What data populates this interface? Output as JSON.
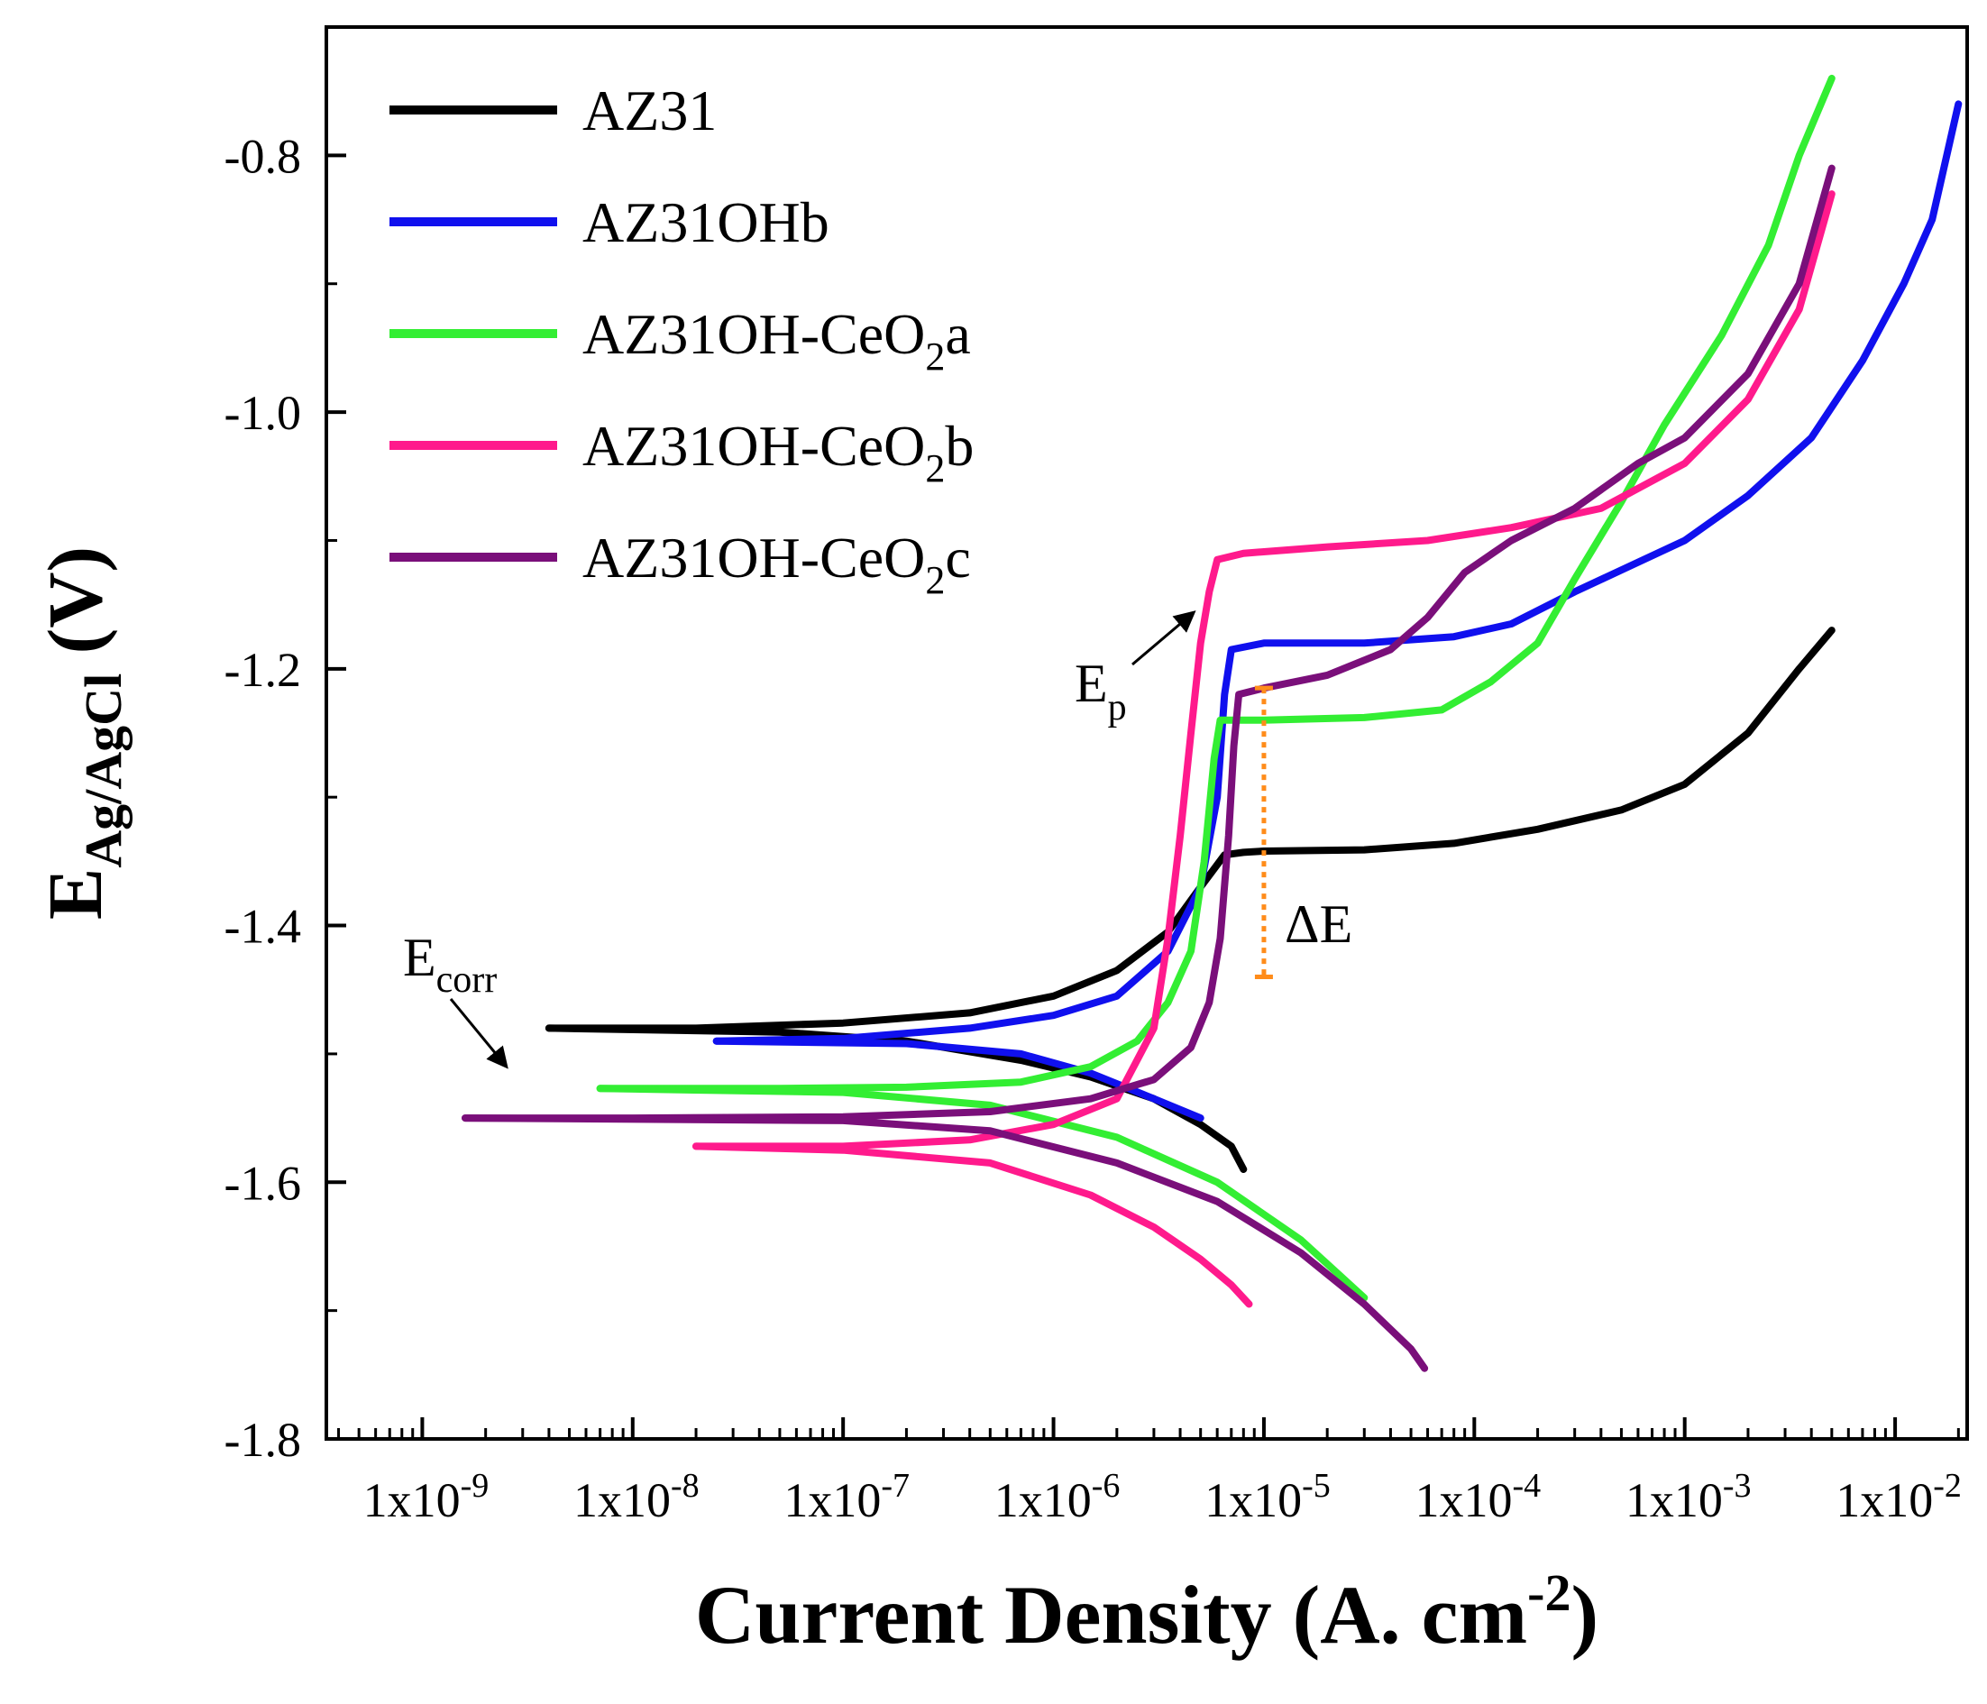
{
  "chart_data": {
    "type": "line",
    "xscale": "log",
    "xlabel": "Current Density (A. cm",
    "xlabel_sup": "-2",
    "xlabel_end": ")",
    "ylabel_main": "E",
    "ylabel_sub": "Ag/AgCl",
    "ylabel_end": " (V)",
    "xlim": [
      3.5e-10,
      0.022
    ],
    "ylim": [
      -1.8,
      -0.7
    ],
    "ytick_values": [
      -0.8,
      -1.0,
      -1.2,
      -1.4,
      -1.6,
      -1.8
    ],
    "ytick_labels": [
      "-0.8",
      "-1.0",
      "-1.2",
      "-1.4",
      "-1.6",
      "-1.8"
    ],
    "xtick_exponents": [
      -9,
      -8,
      -7,
      -6,
      -5,
      -4,
      -3,
      -2
    ],
    "xtick_base": "1x10",
    "series": [
      {
        "name": "AZ31",
        "legend_main": "AZ31",
        "legend_sub": "",
        "legend_end": "",
        "color": "#000000",
        "points": [
          [
            4e-09,
            -1.48
          ],
          [
            2e-08,
            -1.48
          ],
          [
            1e-07,
            -1.476
          ],
          [
            4e-07,
            -1.468
          ],
          [
            1e-06,
            -1.455
          ],
          [
            2e-06,
            -1.435
          ],
          [
            3.5e-06,
            -1.405
          ],
          [
            5e-06,
            -1.37
          ],
          [
            6.5e-06,
            -1.345
          ],
          [
            8e-06,
            -1.343
          ],
          [
            1e-05,
            -1.342
          ],
          [
            3e-05,
            -1.341
          ],
          [
            8e-05,
            -1.336
          ],
          [
            0.0002,
            -1.325
          ],
          [
            0.0005,
            -1.31
          ],
          [
            0.001,
            -1.29
          ],
          [
            0.002,
            -1.25
          ],
          [
            0.0035,
            -1.2
          ],
          [
            0.005,
            -1.17
          ]
        ],
        "cathodic": [
          [
            4e-09,
            -1.48
          ],
          [
            5e-08,
            -1.483
          ],
          [
            2e-07,
            -1.49
          ],
          [
            7e-07,
            -1.505
          ],
          [
            1.5e-06,
            -1.518
          ],
          [
            3e-06,
            -1.535
          ],
          [
            5e-06,
            -1.555
          ],
          [
            7e-06,
            -1.572
          ],
          [
            8e-06,
            -1.59
          ]
        ]
      },
      {
        "name": "AZ31OHb",
        "legend_main": "AZ31OHb",
        "legend_sub": "",
        "legend_end": "",
        "color": "#1010ee",
        "points": [
          [
            2.5e-08,
            -1.49
          ],
          [
            1e-07,
            -1.488
          ],
          [
            4e-07,
            -1.48
          ],
          [
            1e-06,
            -1.47
          ],
          [
            2e-06,
            -1.455
          ],
          [
            3.5e-06,
            -1.42
          ],
          [
            5e-06,
            -1.37
          ],
          [
            6e-06,
            -1.3
          ],
          [
            6.5e-06,
            -1.22
          ],
          [
            7e-06,
            -1.185
          ],
          [
            1e-05,
            -1.18
          ],
          [
            3e-05,
            -1.18
          ],
          [
            8e-05,
            -1.175
          ],
          [
            0.00015,
            -1.165
          ],
          [
            0.0003,
            -1.14
          ],
          [
            0.001,
            -1.1
          ],
          [
            0.002,
            -1.065
          ],
          [
            0.004,
            -1.02
          ],
          [
            0.007,
            -0.96
          ],
          [
            0.011,
            -0.9
          ],
          [
            0.015,
            -0.85
          ],
          [
            0.02,
            -0.76
          ]
        ],
        "cathodic": [
          [
            2.5e-08,
            -1.49
          ],
          [
            2e-07,
            -1.492
          ],
          [
            7e-07,
            -1.5
          ],
          [
            1.5e-06,
            -1.515
          ],
          [
            3e-06,
            -1.535
          ],
          [
            5e-06,
            -1.55
          ]
        ]
      },
      {
        "name": "AZ31OH-CeO2a",
        "legend_main": "AZ31OH-CeO",
        "legend_sub": "2",
        "legend_end": "a",
        "color": "#33ee33",
        "points": [
          [
            7e-09,
            -1.527
          ],
          [
            5e-08,
            -1.527
          ],
          [
            2e-07,
            -1.526
          ],
          [
            7e-07,
            -1.522
          ],
          [
            1.5e-06,
            -1.51
          ],
          [
            2.5e-06,
            -1.49
          ],
          [
            3.5e-06,
            -1.46
          ],
          [
            4.5e-06,
            -1.42
          ],
          [
            5.2e-06,
            -1.35
          ],
          [
            5.8e-06,
            -1.27
          ],
          [
            6.2e-06,
            -1.24
          ],
          [
            1e-05,
            -1.24
          ],
          [
            3e-05,
            -1.238
          ],
          [
            7e-05,
            -1.232
          ],
          [
            0.00012,
            -1.21
          ],
          [
            0.0002,
            -1.18
          ],
          [
            0.0003,
            -1.13
          ],
          [
            0.0005,
            -1.07
          ],
          [
            0.0008,
            -1.01
          ],
          [
            0.0015,
            -0.94
          ],
          [
            0.0025,
            -0.87
          ],
          [
            0.0035,
            -0.8
          ],
          [
            0.005,
            -0.74
          ]
        ],
        "cathodic": [
          [
            7e-09,
            -1.527
          ],
          [
            1e-07,
            -1.53
          ],
          [
            5e-07,
            -1.54
          ],
          [
            2e-06,
            -1.565
          ],
          [
            6e-06,
            -1.6
          ],
          [
            1.5e-05,
            -1.645
          ],
          [
            3e-05,
            -1.69
          ]
        ]
      },
      {
        "name": "AZ31OH-CeO2b",
        "legend_main": "AZ31OH-CeO",
        "legend_sub": "2",
        "legend_end": "b",
        "color": "#ff1a8c",
        "points": [
          [
            2e-08,
            -1.572
          ],
          [
            1e-07,
            -1.572
          ],
          [
            4e-07,
            -1.567
          ],
          [
            1e-06,
            -1.555
          ],
          [
            2e-06,
            -1.535
          ],
          [
            3e-06,
            -1.48
          ],
          [
            3.5e-06,
            -1.41
          ],
          [
            4e-06,
            -1.33
          ],
          [
            4.5e-06,
            -1.25
          ],
          [
            5e-06,
            -1.18
          ],
          [
            5.5e-06,
            -1.14
          ],
          [
            6e-06,
            -1.115
          ],
          [
            8e-06,
            -1.11
          ],
          [
            2e-05,
            -1.105
          ],
          [
            6e-05,
            -1.1
          ],
          [
            0.00015,
            -1.09
          ],
          [
            0.0004,
            -1.075
          ],
          [
            0.001,
            -1.04
          ],
          [
            0.002,
            -0.99
          ],
          [
            0.0035,
            -0.92
          ],
          [
            0.005,
            -0.83
          ]
        ],
        "cathodic": [
          [
            2e-08,
            -1.572
          ],
          [
            1e-07,
            -1.575
          ],
          [
            5e-07,
            -1.585
          ],
          [
            1.5e-06,
            -1.61
          ],
          [
            3e-06,
            -1.635
          ],
          [
            5e-06,
            -1.66
          ],
          [
            7e-06,
            -1.68
          ],
          [
            8.5e-06,
            -1.695
          ]
        ]
      },
      {
        "name": "AZ31OH-CeO2c",
        "legend_main": "AZ31OH-CeO",
        "legend_sub": "2",
        "legend_end": "c",
        "color": "#7a0f7a",
        "points": [
          [
            1.6e-09,
            -1.55
          ],
          [
            1e-08,
            -1.55
          ],
          [
            1e-07,
            -1.549
          ],
          [
            5e-07,
            -1.545
          ],
          [
            1.5e-06,
            -1.535
          ],
          [
            3e-06,
            -1.52
          ],
          [
            4.5e-06,
            -1.495
          ],
          [
            5.5e-06,
            -1.46
          ],
          [
            6.2e-06,
            -1.41
          ],
          [
            6.8e-06,
            -1.33
          ],
          [
            7.2e-06,
            -1.26
          ],
          [
            7.6e-06,
            -1.22
          ],
          [
            1e-05,
            -1.215
          ],
          [
            2e-05,
            -1.205
          ],
          [
            4e-05,
            -1.185
          ],
          [
            6e-05,
            -1.16
          ],
          [
            9e-05,
            -1.125
          ],
          [
            0.00015,
            -1.1
          ],
          [
            0.0003,
            -1.075
          ],
          [
            0.0006,
            -1.04
          ],
          [
            0.001,
            -1.02
          ],
          [
            0.002,
            -0.97
          ],
          [
            0.0035,
            -0.9
          ],
          [
            0.005,
            -0.81
          ]
        ],
        "cathodic": [
          [
            1.6e-09,
            -1.55
          ],
          [
            1e-07,
            -1.552
          ],
          [
            5e-07,
            -1.56
          ],
          [
            2e-06,
            -1.585
          ],
          [
            6e-06,
            -1.615
          ],
          [
            1.5e-05,
            -1.655
          ],
          [
            3e-05,
            -1.695
          ],
          [
            5e-05,
            -1.73
          ],
          [
            5.8e-05,
            -1.745
          ]
        ]
      }
    ],
    "annotations": {
      "ecorr_main": "E",
      "ecorr_sub": "corr",
      "ep_main": "E",
      "ep_sub": "p",
      "delta_e": "ΔE",
      "delta_e_range": [
        -1.215,
        -1.44
      ],
      "delta_e_x": 1e-05,
      "delta_e_color": "#ff8c1a"
    }
  }
}
